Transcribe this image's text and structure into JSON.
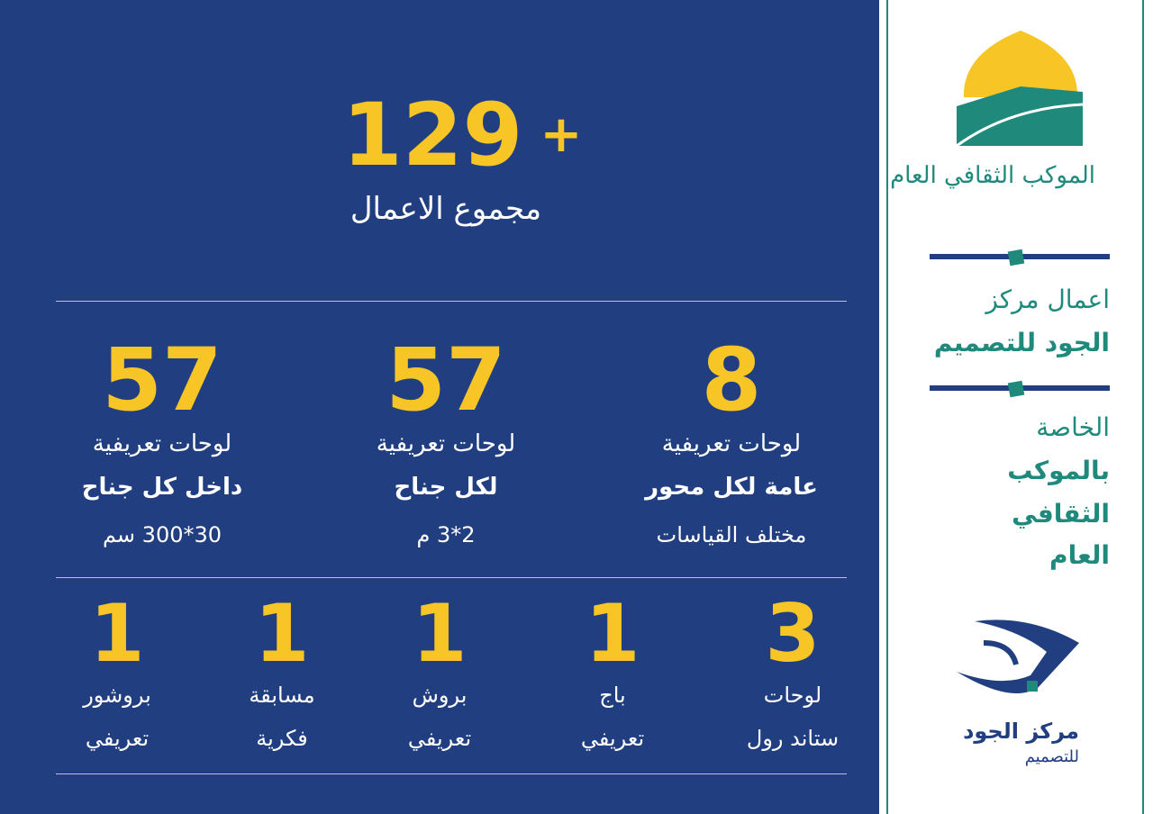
{
  "total": {
    "number": 129,
    "sign": "+",
    "label": "مجموع الاعمال"
  },
  "row1": [
    {
      "number": 8,
      "lines": [
        "لوحات تعريفية",
        "عامة لكل محور",
        "مختلف القياسات"
      ]
    },
    {
      "number": 57,
      "lines": [
        "لوحات تعريفية",
        "لكل جناح",
        "2*3 م"
      ]
    },
    {
      "number": 57,
      "lines": [
        "لوحات تعريفية",
        "داخل كل جناح",
        "30*300 سم"
      ]
    }
  ],
  "row2": [
    {
      "number": 3,
      "lines": [
        "لوحات",
        "ستاند رول"
      ]
    },
    {
      "number": 1,
      "lines": [
        "باج",
        "تعريفي"
      ]
    },
    {
      "number": 1,
      "lines": [
        "بروش",
        "تعريفي"
      ]
    },
    {
      "number": 1,
      "lines": [
        "مسابقة",
        "فكرية"
      ]
    },
    {
      "number": 1,
      "lines": [
        "بروشور",
        "تعريفي"
      ]
    }
  ],
  "sidebar": {
    "logo_text": "الموكب الثقافي العام",
    "title_lines": [
      "اعمال مركز",
      "الجود للتصميم"
    ],
    "subtitle_lines": [
      "الخاصة",
      "بالموكب",
      "الثقافي",
      "العام"
    ],
    "brand": [
      "مركز الجود",
      "للتصميم"
    ]
  }
}
